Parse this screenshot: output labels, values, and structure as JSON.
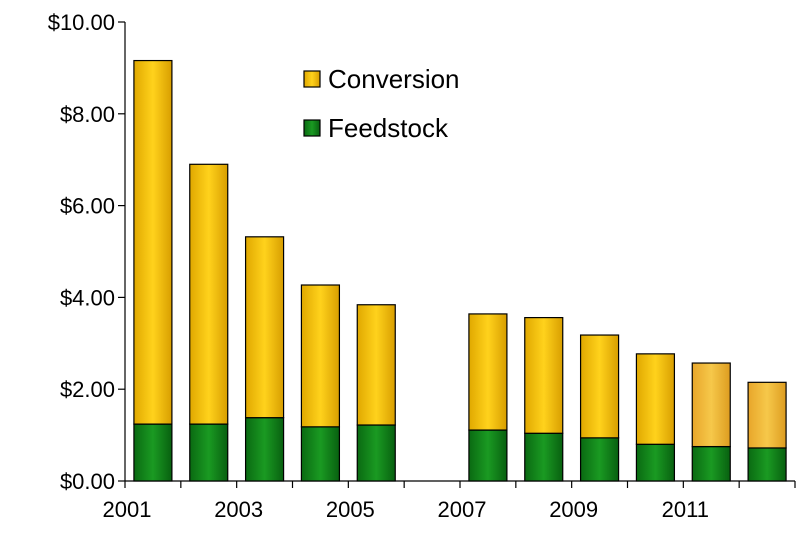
{
  "chart_data": {
    "type": "bar",
    "stacked": true,
    "categories": [
      "2001",
      "2002",
      "2003",
      "2004",
      "2005",
      "2006",
      "2007",
      "2008",
      "2009",
      "2010",
      "2011",
      "2012"
    ],
    "x_tick_labels": [
      "2001",
      "",
      "2003",
      "",
      "2005",
      "",
      "2007",
      "",
      "2009",
      "",
      "2011",
      ""
    ],
    "series": [
      {
        "name": "Feedstock",
        "color": "#0b7a16",
        "values": [
          1.24,
          1.24,
          1.38,
          1.18,
          1.22,
          null,
          1.11,
          1.04,
          0.94,
          0.8,
          0.75,
          0.72
        ]
      },
      {
        "name": "Conversion",
        "color": "#f2c200",
        "values": [
          7.92,
          5.66,
          3.94,
          3.09,
          2.62,
          null,
          2.53,
          2.52,
          2.24,
          1.97,
          1.82,
          1.43
        ]
      }
    ],
    "ylim": [
      0,
      10
    ],
    "y_ticks": [
      {
        "value": 0,
        "label": "$0.00"
      },
      {
        "value": 2,
        "label": "$2.00"
      },
      {
        "value": 4,
        "label": "$4.00"
      },
      {
        "value": 6,
        "label": "$6.00"
      },
      {
        "value": 8,
        "label": "$8.00"
      },
      {
        "value": 10,
        "label": "$10.00"
      }
    ],
    "legend": {
      "placement": "top-center",
      "order": [
        "Conversion",
        "Feedstock"
      ]
    },
    "grid": false,
    "title": "",
    "xlabel": "",
    "ylabel": ""
  }
}
